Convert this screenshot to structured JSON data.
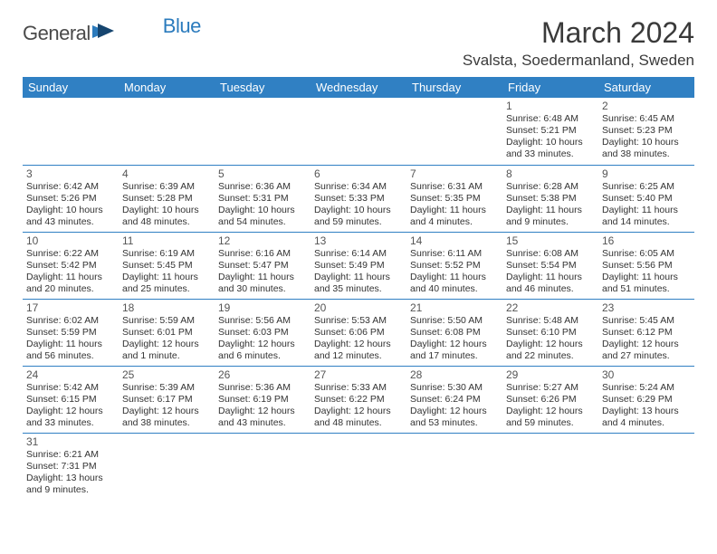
{
  "brand": {
    "part1": "General",
    "part2": "Blue"
  },
  "title": "March 2024",
  "location": "Svalsta, Soedermanland, Sweden",
  "colors": {
    "header_bg": "#3080c3",
    "header_fg": "#ffffff",
    "rule": "#3080c3",
    "brand_blue": "#2b7bbd"
  },
  "weekdays": [
    "Sunday",
    "Monday",
    "Tuesday",
    "Wednesday",
    "Thursday",
    "Friday",
    "Saturday"
  ],
  "weeks": [
    [
      null,
      null,
      null,
      null,
      null,
      {
        "n": "1",
        "sunrise": "6:48 AM",
        "sunset": "5:21 PM",
        "dl": "10 hours and 33 minutes."
      },
      {
        "n": "2",
        "sunrise": "6:45 AM",
        "sunset": "5:23 PM",
        "dl": "10 hours and 38 minutes."
      }
    ],
    [
      {
        "n": "3",
        "sunrise": "6:42 AM",
        "sunset": "5:26 PM",
        "dl": "10 hours and 43 minutes."
      },
      {
        "n": "4",
        "sunrise": "6:39 AM",
        "sunset": "5:28 PM",
        "dl": "10 hours and 48 minutes."
      },
      {
        "n": "5",
        "sunrise": "6:36 AM",
        "sunset": "5:31 PM",
        "dl": "10 hours and 54 minutes."
      },
      {
        "n": "6",
        "sunrise": "6:34 AM",
        "sunset": "5:33 PM",
        "dl": "10 hours and 59 minutes."
      },
      {
        "n": "7",
        "sunrise": "6:31 AM",
        "sunset": "5:35 PM",
        "dl": "11 hours and 4 minutes."
      },
      {
        "n": "8",
        "sunrise": "6:28 AM",
        "sunset": "5:38 PM",
        "dl": "11 hours and 9 minutes."
      },
      {
        "n": "9",
        "sunrise": "6:25 AM",
        "sunset": "5:40 PM",
        "dl": "11 hours and 14 minutes."
      }
    ],
    [
      {
        "n": "10",
        "sunrise": "6:22 AM",
        "sunset": "5:42 PM",
        "dl": "11 hours and 20 minutes."
      },
      {
        "n": "11",
        "sunrise": "6:19 AM",
        "sunset": "5:45 PM",
        "dl": "11 hours and 25 minutes."
      },
      {
        "n": "12",
        "sunrise": "6:16 AM",
        "sunset": "5:47 PM",
        "dl": "11 hours and 30 minutes."
      },
      {
        "n": "13",
        "sunrise": "6:14 AM",
        "sunset": "5:49 PM",
        "dl": "11 hours and 35 minutes."
      },
      {
        "n": "14",
        "sunrise": "6:11 AM",
        "sunset": "5:52 PM",
        "dl": "11 hours and 40 minutes."
      },
      {
        "n": "15",
        "sunrise": "6:08 AM",
        "sunset": "5:54 PM",
        "dl": "11 hours and 46 minutes."
      },
      {
        "n": "16",
        "sunrise": "6:05 AM",
        "sunset": "5:56 PM",
        "dl": "11 hours and 51 minutes."
      }
    ],
    [
      {
        "n": "17",
        "sunrise": "6:02 AM",
        "sunset": "5:59 PM",
        "dl": "11 hours and 56 minutes."
      },
      {
        "n": "18",
        "sunrise": "5:59 AM",
        "sunset": "6:01 PM",
        "dl": "12 hours and 1 minute."
      },
      {
        "n": "19",
        "sunrise": "5:56 AM",
        "sunset": "6:03 PM",
        "dl": "12 hours and 6 minutes."
      },
      {
        "n": "20",
        "sunrise": "5:53 AM",
        "sunset": "6:06 PM",
        "dl": "12 hours and 12 minutes."
      },
      {
        "n": "21",
        "sunrise": "5:50 AM",
        "sunset": "6:08 PM",
        "dl": "12 hours and 17 minutes."
      },
      {
        "n": "22",
        "sunrise": "5:48 AM",
        "sunset": "6:10 PM",
        "dl": "12 hours and 22 minutes."
      },
      {
        "n": "23",
        "sunrise": "5:45 AM",
        "sunset": "6:12 PM",
        "dl": "12 hours and 27 minutes."
      }
    ],
    [
      {
        "n": "24",
        "sunrise": "5:42 AM",
        "sunset": "6:15 PM",
        "dl": "12 hours and 33 minutes."
      },
      {
        "n": "25",
        "sunrise": "5:39 AM",
        "sunset": "6:17 PM",
        "dl": "12 hours and 38 minutes."
      },
      {
        "n": "26",
        "sunrise": "5:36 AM",
        "sunset": "6:19 PM",
        "dl": "12 hours and 43 minutes."
      },
      {
        "n": "27",
        "sunrise": "5:33 AM",
        "sunset": "6:22 PM",
        "dl": "12 hours and 48 minutes."
      },
      {
        "n": "28",
        "sunrise": "5:30 AM",
        "sunset": "6:24 PM",
        "dl": "12 hours and 53 minutes."
      },
      {
        "n": "29",
        "sunrise": "5:27 AM",
        "sunset": "6:26 PM",
        "dl": "12 hours and 59 minutes."
      },
      {
        "n": "30",
        "sunrise": "5:24 AM",
        "sunset": "6:29 PM",
        "dl": "13 hours and 4 minutes."
      }
    ],
    [
      {
        "n": "31",
        "sunrise": "6:21 AM",
        "sunset": "7:31 PM",
        "dl": "13 hours and 9 minutes."
      },
      null,
      null,
      null,
      null,
      null,
      null
    ]
  ],
  "labels": {
    "sunrise": "Sunrise: ",
    "sunset": "Sunset: ",
    "daylight": "Daylight: "
  }
}
